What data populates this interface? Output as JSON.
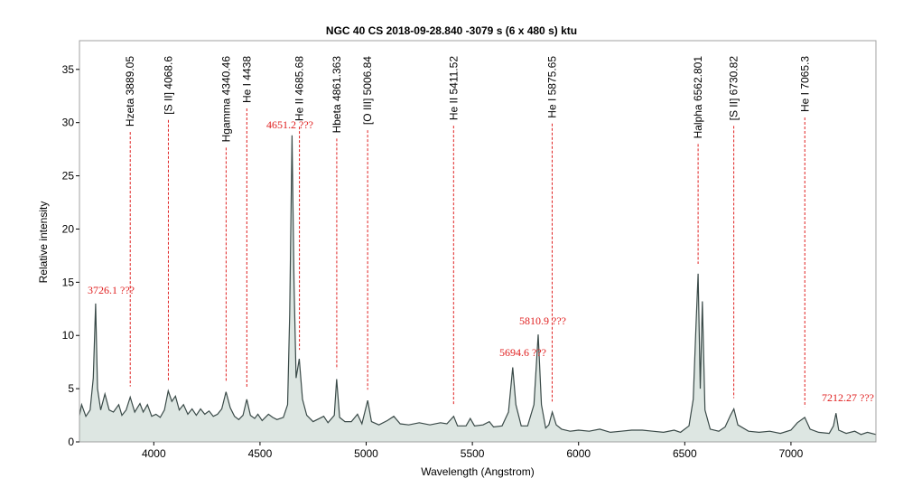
{
  "chart_data": {
    "type": "line",
    "title": "NGC 40 CS   2018-09-28.840   -3079 s (6 x 480 s)   ktu",
    "x_label": "Wavelength (Angstrom)",
    "y_label": "Relative intensity",
    "xlim": [
      3650,
      7400
    ],
    "ylim": [
      0,
      37.7
    ],
    "xticks": [
      4000,
      4500,
      5000,
      5500,
      6000,
      6500,
      7000
    ],
    "yticks": [
      0,
      5,
      10,
      15,
      20,
      25,
      30,
      35
    ],
    "grid": false,
    "series": [
      {
        "color": "#3a4a48",
        "x": [
          3650,
          3660,
          3680,
          3700,
          3715,
          3726,
          3735,
          3750,
          3770,
          3790,
          3810,
          3835,
          3850,
          3870,
          3889,
          3910,
          3935,
          3950,
          3970,
          3990,
          4010,
          4030,
          4050,
          4068,
          4085,
          4102,
          4120,
          4140,
          4160,
          4180,
          4200,
          4220,
          4240,
          4260,
          4280,
          4300,
          4320,
          4340,
          4360,
          4380,
          4400,
          4420,
          4438,
          4455,
          4475,
          4490,
          4510,
          4540,
          4560,
          4580,
          4610,
          4630,
          4640,
          4651,
          4660,
          4670,
          4685,
          4700,
          4720,
          4750,
          4780,
          4800,
          4820,
          4850,
          4861,
          4875,
          4900,
          4930,
          4959,
          4980,
          5007,
          5025,
          5060,
          5100,
          5130,
          5160,
          5200,
          5250,
          5300,
          5350,
          5380,
          5412,
          5430,
          5470,
          5490,
          5510,
          5550,
          5580,
          5600,
          5640,
          5670,
          5690,
          5705,
          5730,
          5760,
          5790,
          5810,
          5825,
          5845,
          5860,
          5876,
          5895,
          5920,
          5960,
          6000,
          6050,
          6100,
          6150,
          6200,
          6250,
          6300,
          6350,
          6400,
          6450,
          6480,
          6520,
          6540,
          6553,
          6563,
          6573,
          6583,
          6595,
          6620,
          6660,
          6690,
          6715,
          6731,
          6750,
          6800,
          6850,
          6900,
          6950,
          7000,
          7030,
          7065,
          7090,
          7130,
          7180,
          7200,
          7212,
          7225,
          7260,
          7300,
          7330,
          7360,
          7400
        ],
        "values": [
          2.5,
          3.5,
          2.4,
          3.0,
          6,
          13,
          5,
          3,
          4.5,
          3,
          2.8,
          3.5,
          2.5,
          3,
          4.2,
          2.8,
          3.6,
          2.8,
          3.5,
          2.4,
          2.6,
          2.3,
          3,
          4.8,
          3.8,
          4.3,
          3,
          3.5,
          2.6,
          3.1,
          2.5,
          3.1,
          2.6,
          2.9,
          2.4,
          2.6,
          3.1,
          4.7,
          3.2,
          2.4,
          2.1,
          2.5,
          4.0,
          2.5,
          2.2,
          2.6,
          2.0,
          2.6,
          2.3,
          2.1,
          2.3,
          3.5,
          12,
          28.8,
          15,
          6,
          7.8,
          4,
          2.5,
          1.9,
          2.2,
          2.4,
          1.8,
          2.5,
          5.9,
          2.3,
          1.9,
          1.9,
          2.6,
          1.7,
          3.9,
          1.9,
          1.6,
          2.0,
          2.4,
          1.7,
          1.6,
          1.8,
          1.6,
          1.8,
          1.7,
          2.4,
          1.5,
          1.5,
          2.2,
          1.5,
          1.6,
          1.9,
          1.4,
          1.5,
          2.8,
          7.0,
          3.5,
          1.5,
          1.5,
          3.5,
          10.1,
          3.5,
          1.3,
          1.6,
          2.8,
          1.6,
          1.2,
          1.0,
          1.1,
          1.0,
          1.2,
          0.9,
          1.0,
          1.1,
          1.1,
          1.0,
          0.9,
          1.1,
          0.9,
          1.5,
          4,
          11,
          15.8,
          5,
          13.2,
          3,
          1.2,
          1.0,
          1.4,
          2.5,
          3.1,
          1.6,
          1.0,
          0.9,
          1.0,
          0.8,
          1.1,
          1.8,
          2.3,
          1.2,
          0.9,
          0.8,
          1.5,
          2.7,
          1.1,
          0.8,
          1.0,
          0.7,
          0.9,
          0.7
        ]
      }
    ],
    "line_ids": [
      {
        "x": 3889.05,
        "label": "Hzeta 3889.05"
      },
      {
        "x": 4068.6,
        "label": "[S II] 4068.6"
      },
      {
        "x": 4340.46,
        "label": "Hgamma 4340.46"
      },
      {
        "x": 4438,
        "label": "He I 4438"
      },
      {
        "x": 4685.68,
        "label": "He II 4685.68"
      },
      {
        "x": 4861.363,
        "label": "Hbeta 4861.363"
      },
      {
        "x": 5006.84,
        "label": "[O III] 5006.84"
      },
      {
        "x": 5411.52,
        "label": "He II 5411.52"
      },
      {
        "x": 5875.65,
        "label": "He I 5875.65"
      },
      {
        "x": 6562.801,
        "label": "Halpha 6562.801"
      },
      {
        "x": 6730.82,
        "label": "[S II] 6730.82"
      },
      {
        "x": 7065.3,
        "label": "He I 7065.3"
      }
    ],
    "annotations": [
      "3726.1 ???",
      "4651.2 ???",
      "5694.6 ???",
      "5810.9 ???",
      "7212.27  ???"
    ]
  }
}
